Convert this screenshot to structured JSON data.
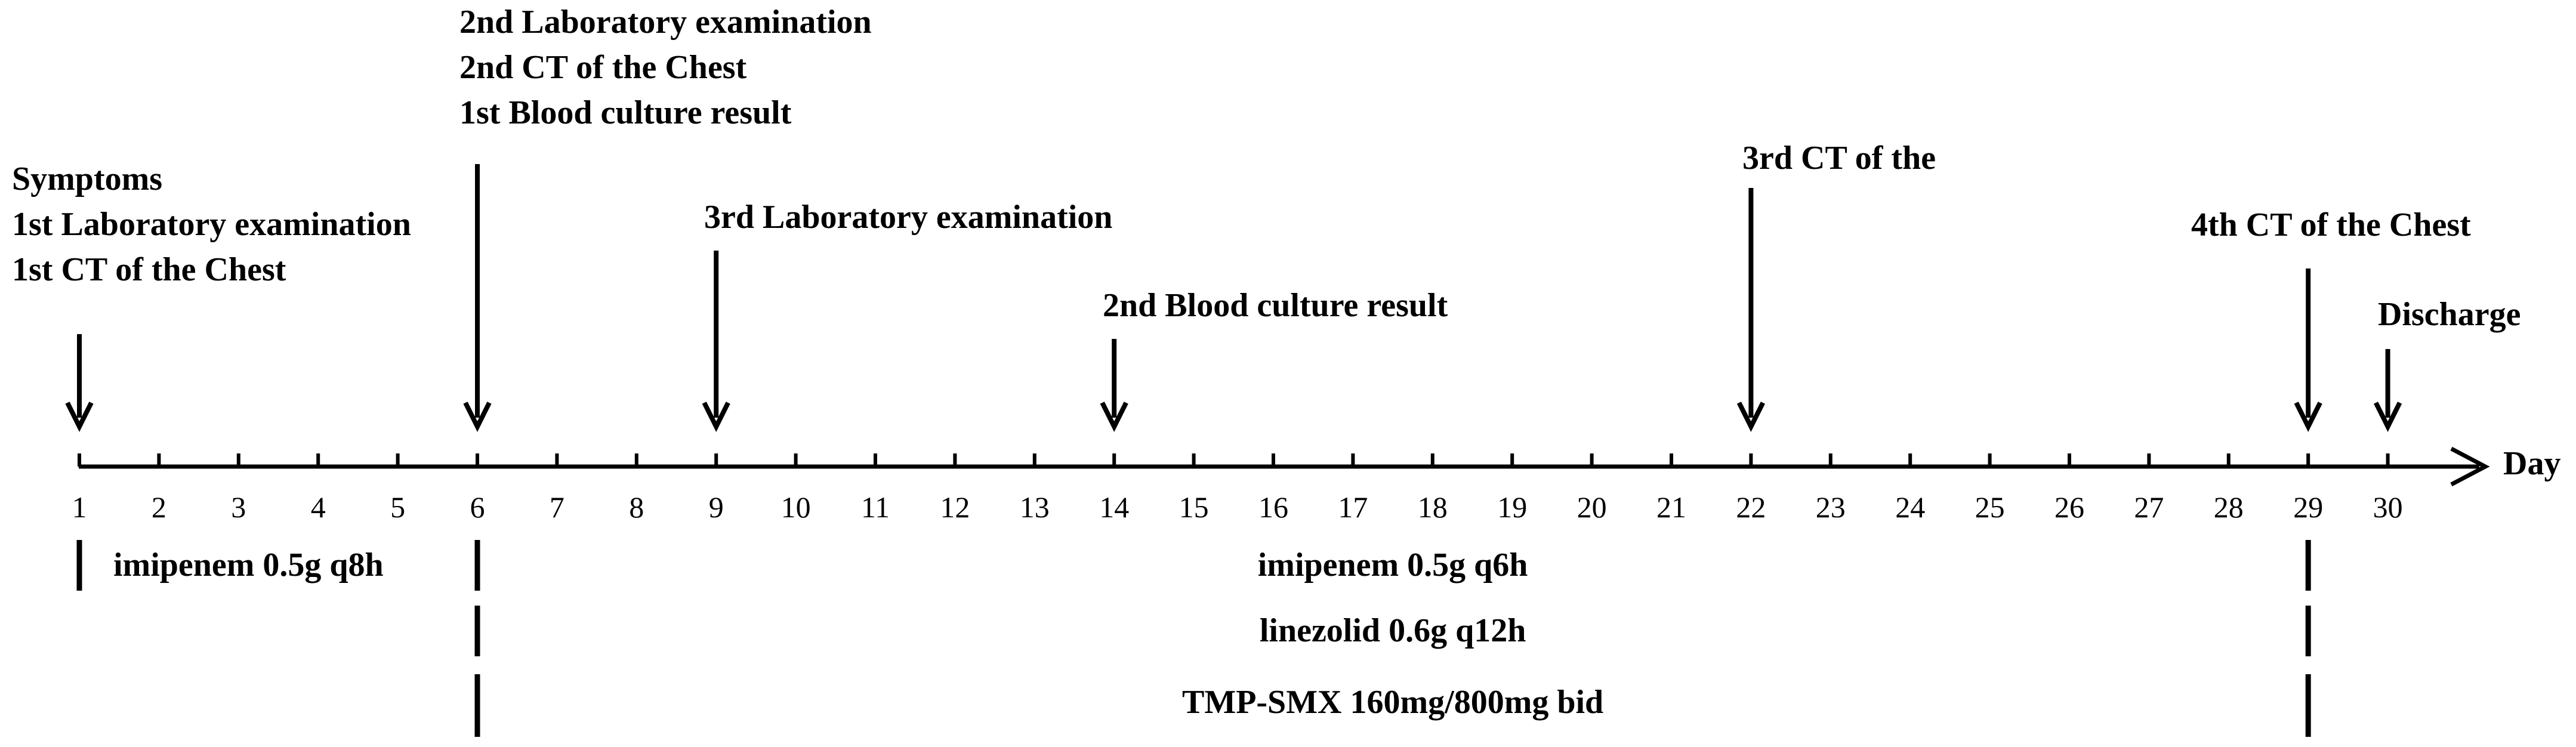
{
  "axis": {
    "label": "Day",
    "days": [
      "1",
      "2",
      "3",
      "4",
      "5",
      "6",
      "7",
      "8",
      "9",
      "10",
      "11",
      "12",
      "13",
      "14",
      "15",
      "16",
      "17",
      "18",
      "19",
      "20",
      "21",
      "22",
      "23",
      "24",
      "25",
      "26",
      "27",
      "28",
      "29",
      "30"
    ]
  },
  "events": [
    {
      "day": 1,
      "lines": [
        "Symptoms",
        "1st Laboratory examination",
        "1st CT of the Chest"
      ]
    },
    {
      "day": 6,
      "lines": [
        "2nd Laboratory examination",
        "2nd CT of the Chest",
        "1st Blood culture result"
      ]
    },
    {
      "day": 9,
      "lines": [
        "3rd Laboratory examination"
      ]
    },
    {
      "day": 14,
      "lines": [
        "2nd Blood culture result"
      ]
    },
    {
      "day": 22,
      "lines": [
        "3rd CT of  the"
      ]
    },
    {
      "day": 29,
      "lines": [
        "4th CT of the Chest"
      ]
    },
    {
      "day": 30,
      "lines": [
        "Discharge"
      ]
    }
  ],
  "treatments": [
    {
      "label": "imipenem 0.5g q8h",
      "from_day": 1,
      "to_day": 6
    },
    {
      "label": "imipenem 0.5g q6h",
      "from_day": 6,
      "to_day": 29
    },
    {
      "label": "linezolid 0.6g q12h",
      "from_day": 6,
      "to_day": 29
    },
    {
      "label": "TMP-SMX 160mg/800mg bid",
      "from_day": 6,
      "to_day": 29
    }
  ]
}
